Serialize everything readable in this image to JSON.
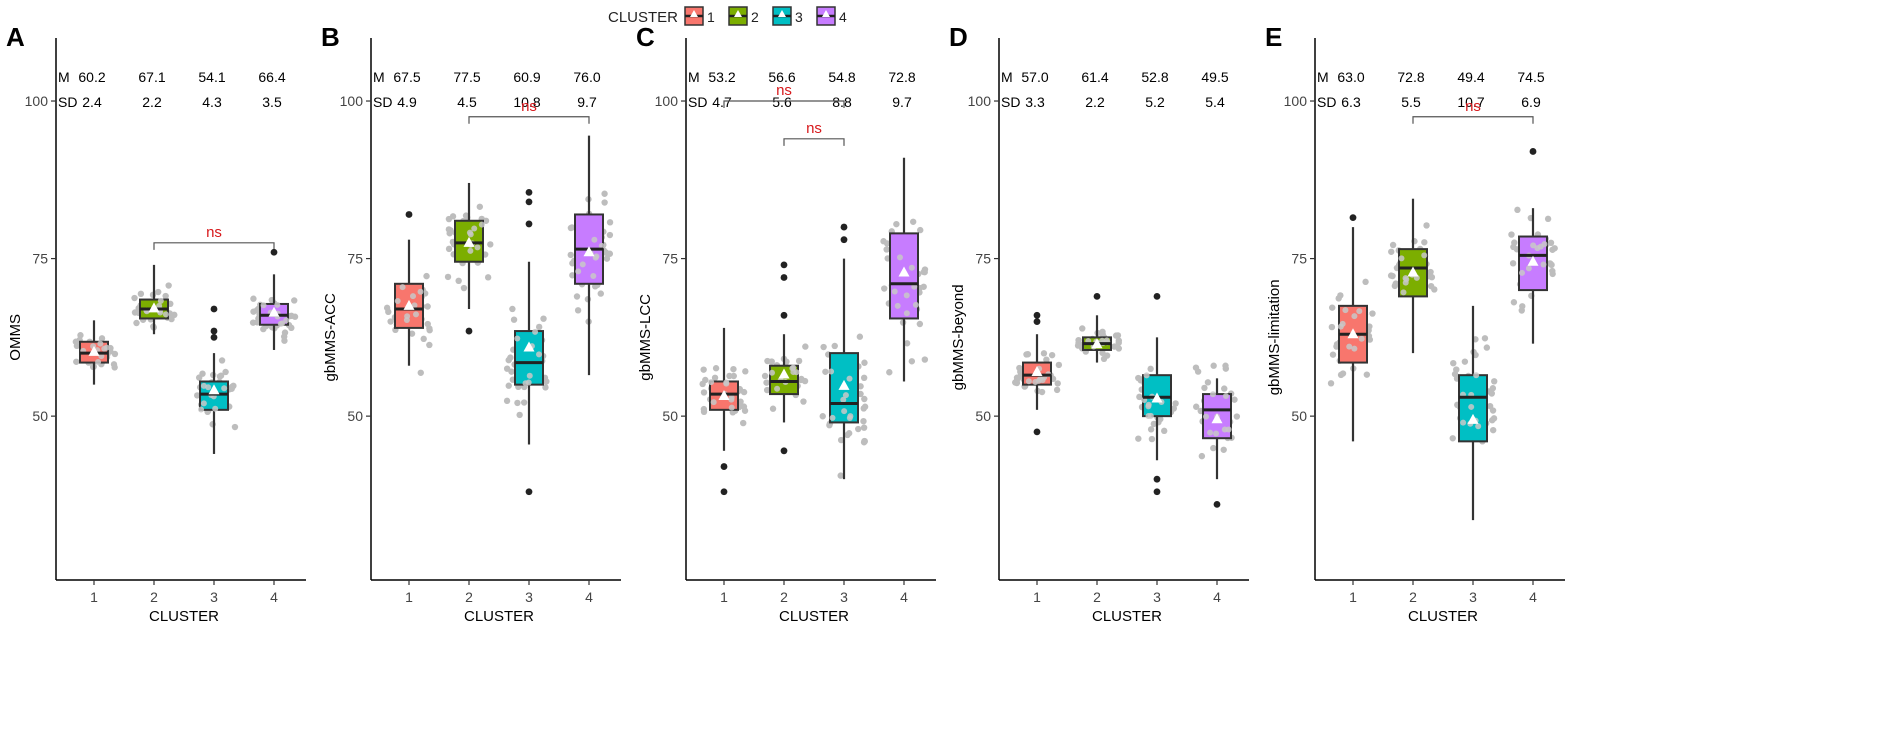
{
  "legend": {
    "title": "CLUSTER",
    "entries": [
      {
        "label": "1",
        "color": "#F8766D"
      },
      {
        "label": "2",
        "color": "#7CAE00"
      },
      {
        "label": "3",
        "color": "#00BFC4"
      },
      {
        "label": "4",
        "color": "#C77CFF"
      }
    ]
  },
  "chart_data": [
    {
      "type": "boxplot",
      "panel": "A",
      "ylabel": "OMMS",
      "xlabel": "CLUSTER",
      "categories": [
        "1",
        "2",
        "3",
        "4"
      ],
      "ylim": [
        24,
        110
      ],
      "yticks": [
        50,
        75,
        100
      ],
      "stats_labels": {
        "mean": "M",
        "sd": "SD"
      },
      "means": [
        "60.2",
        "67.1",
        "54.1",
        "66.4"
      ],
      "sds": [
        "2.4",
        "2.2",
        "4.3",
        "3.5"
      ],
      "boxes": [
        {
          "q1": 58.5,
          "median": 60,
          "q3": 61.8,
          "lo": 55,
          "hi": 65.2,
          "mean": 60.2,
          "outliers": [],
          "spread": 5
        },
        {
          "q1": 65.5,
          "median": 67,
          "q3": 68.5,
          "lo": 63,
          "hi": 74,
          "mean": 67.1,
          "outliers": [],
          "spread": 4
        },
        {
          "q1": 51,
          "median": 53.5,
          "q3": 55.5,
          "lo": 44,
          "hi": 60,
          "mean": 54.1,
          "outliers": [
            62.5,
            63.5,
            67
          ],
          "spread": 5
        },
        {
          "q1": 64.5,
          "median": 66,
          "q3": 67.8,
          "lo": 60.5,
          "hi": 72.5,
          "mean": 66.4,
          "outliers": [
            76
          ],
          "spread": 4
        }
      ],
      "comparisons": [
        {
          "from": 2,
          "to": 4,
          "y": 77.5,
          "label": "ns"
        }
      ]
    },
    {
      "type": "boxplot",
      "panel": "B",
      "ylabel": "gbMMS-ACC",
      "xlabel": "CLUSTER",
      "categories": [
        "1",
        "2",
        "3",
        "4"
      ],
      "ylim": [
        24,
        110
      ],
      "yticks": [
        50,
        75,
        100
      ],
      "stats_labels": {
        "mean": "M",
        "sd": "SD"
      },
      "means": [
        "67.5",
        "77.5",
        "60.9",
        "76.0"
      ],
      "sds": [
        "4.9",
        "4.5",
        "10.8",
        "9.7"
      ],
      "boxes": [
        {
          "q1": 64,
          "median": 67,
          "q3": 71,
          "lo": 58,
          "hi": 78,
          "mean": 67.5,
          "outliers": [
            82
          ],
          "spread": 8
        },
        {
          "q1": 74.5,
          "median": 77.5,
          "q3": 81,
          "lo": 67,
          "hi": 87,
          "mean": 77.5,
          "outliers": [
            63.5
          ],
          "spread": 6
        },
        {
          "q1": 55,
          "median": 58.5,
          "q3": 63.5,
          "lo": 45.5,
          "hi": 74.5,
          "mean": 60.9,
          "outliers": [
            85.5,
            84,
            80.5,
            38
          ],
          "spread": 12
        },
        {
          "q1": 71,
          "median": 76.5,
          "q3": 82,
          "lo": 56.5,
          "hi": 94.5,
          "mean": 76.0,
          "outliers": [],
          "spread": 14
        }
      ],
      "comparisons": [
        {
          "from": 2,
          "to": 4,
          "y": 97.5,
          "label": "ns"
        }
      ]
    },
    {
      "type": "boxplot",
      "panel": "C",
      "ylabel": "gbMMS-LCC",
      "xlabel": "CLUSTER",
      "categories": [
        "1",
        "2",
        "3",
        "4"
      ],
      "ylim": [
        24,
        110
      ],
      "yticks": [
        50,
        75,
        100
      ],
      "stats_labels": {
        "mean": "M",
        "sd": "SD"
      },
      "means": [
        "53.2",
        "56.6",
        "54.8",
        "72.8"
      ],
      "sds": [
        "4.7",
        "5.6",
        "8.8",
        "9.7"
      ],
      "boxes": [
        {
          "q1": 51,
          "median": 53.5,
          "q3": 55.5,
          "lo": 44.5,
          "hi": 64,
          "mean": 53.2,
          "outliers": [
            42,
            38
          ],
          "spread": 7
        },
        {
          "q1": 53.5,
          "median": 55.5,
          "q3": 58,
          "lo": 49,
          "hi": 63,
          "mean": 56.6,
          "outliers": [
            66,
            72,
            74,
            44.5
          ],
          "spread": 6
        },
        {
          "q1": 49,
          "median": 52,
          "q3": 60,
          "lo": 40,
          "hi": 75,
          "mean": 54.8,
          "outliers": [
            78,
            80
          ],
          "spread": 11
        },
        {
          "q1": 65.5,
          "median": 71,
          "q3": 79,
          "lo": 55.5,
          "hi": 91,
          "mean": 72.8,
          "outliers": [],
          "spread": 12
        }
      ],
      "comparisons": [
        {
          "from": 1,
          "to": 3,
          "y": 100,
          "label": "ns"
        },
        {
          "from": 2,
          "to": 3,
          "y": 94,
          "label": "ns"
        }
      ]
    },
    {
      "type": "boxplot",
      "panel": "D",
      "ylabel": "gbMMS-beyond",
      "xlabel": "CLUSTER",
      "categories": [
        "1",
        "2",
        "3",
        "4"
      ],
      "ylim": [
        24,
        110
      ],
      "yticks": [
        50,
        75,
        100
      ],
      "stats_labels": {
        "mean": "M",
        "sd": "SD"
      },
      "means": [
        "57.0",
        "61.4",
        "52.8",
        "49.5"
      ],
      "sds": [
        "3.3",
        "2.2",
        "5.2",
        "5.4"
      ],
      "boxes": [
        {
          "q1": 55,
          "median": 56.5,
          "q3": 58.5,
          "lo": 51,
          "hi": 63,
          "mean": 57.0,
          "outliers": [
            65,
            66,
            47.5
          ],
          "spread": 6
        },
        {
          "q1": 60.5,
          "median": 61.5,
          "q3": 62.5,
          "lo": 58.5,
          "hi": 66,
          "mean": 61.4,
          "outliers": [
            69
          ],
          "spread": 3
        },
        {
          "q1": 50,
          "median": 53,
          "q3": 56.5,
          "lo": 43,
          "hi": 62.5,
          "mean": 52.8,
          "outliers": [
            69,
            38,
            40
          ],
          "spread": 7
        },
        {
          "q1": 46.5,
          "median": 51,
          "q3": 53.5,
          "lo": 40,
          "hi": 56,
          "mean": 49.5,
          "outliers": [
            36
          ],
          "spread": 7
        }
      ],
      "comparisons": []
    },
    {
      "type": "boxplot",
      "panel": "E",
      "ylabel": "gbMMS-limitation",
      "xlabel": "CLUSTER",
      "categories": [
        "1",
        "2",
        "3",
        "4"
      ],
      "ylim": [
        24,
        110
      ],
      "yticks": [
        50,
        75,
        100
      ],
      "stats_labels": {
        "mean": "M",
        "sd": "SD"
      },
      "means": [
        "63.0",
        "72.8",
        "49.4",
        "74.5"
      ],
      "sds": [
        "6.3",
        "5.5",
        "10.7",
        "6.9"
      ],
      "boxes": [
        {
          "q1": 58.5,
          "median": 63,
          "q3": 67.5,
          "lo": 46,
          "hi": 80,
          "mean": 63.0,
          "outliers": [
            81.5
          ],
          "spread": 10
        },
        {
          "q1": 69,
          "median": 73.5,
          "q3": 76.5,
          "lo": 60,
          "hi": 84.5,
          "mean": 72.8,
          "outliers": [],
          "spread": 8
        },
        {
          "q1": 46,
          "median": 53,
          "q3": 56.5,
          "lo": 33.5,
          "hi": 67.5,
          "mean": 49.4,
          "outliers": [],
          "spread": 12
        },
        {
          "q1": 70,
          "median": 75.5,
          "q3": 78.5,
          "lo": 61.5,
          "hi": 83,
          "mean": 74.5,
          "outliers": [
            92
          ],
          "spread": 9
        }
      ],
      "comparisons": [
        {
          "from": 2,
          "to": 4,
          "y": 97.5,
          "label": "ns"
        }
      ]
    }
  ]
}
